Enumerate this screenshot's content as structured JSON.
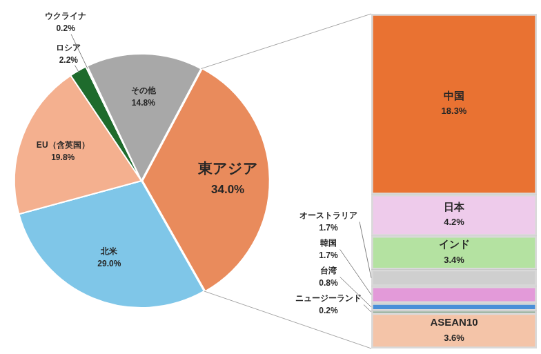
{
  "chart_data": [
    {
      "type": "pie",
      "categories": [
        "東アジア",
        "北米",
        "EU（含英国）",
        "ロシア",
        "ウクライナ",
        "その他"
      ],
      "values": [
        34.0,
        29.0,
        19.8,
        2.2,
        0.2,
        14.8
      ],
      "value_labels": [
        "34.0%",
        "29.0%",
        "19.8%",
        "2.2%",
        "0.2%",
        "14.8%"
      ],
      "colors": [
        "#e98b5c",
        "#7fc6e8",
        "#f4b08f",
        "#1e6b2c",
        "#f4f4f4",
        "#a8a8a8"
      ],
      "data_labels": true
    },
    {
      "type": "bar",
      "stacked": true,
      "data_labels": true,
      "tick_labels": false,
      "categories": [
        null
      ],
      "series": [
        {
          "name": "ASEAN10",
          "color": "#f4c4a8",
          "values": [
            3.6
          ],
          "value_labels": [
            "3.6%"
          ]
        },
        {
          "name": "ニュージーランド",
          "color": "#1f5f2a",
          "values": [
            0.2
          ],
          "value_labels": [
            "0.2%"
          ]
        },
        {
          "name": "台湾",
          "color": "#4a8fd8",
          "values": [
            0.8
          ],
          "value_labels": [
            "0.8%"
          ]
        },
        {
          "name": "韓国",
          "color": "#e39ad9",
          "values": [
            1.7
          ],
          "value_labels": [
            "1.7%"
          ]
        },
        {
          "name": "オーストラリア",
          "color": "#cfcfcf",
          "values": [
            1.7
          ],
          "value_labels": [
            "1.7%"
          ]
        },
        {
          "name": "インド",
          "color": "#b4e2a1",
          "values": [
            3.4
          ],
          "value_labels": [
            "3.4%"
          ]
        },
        {
          "name": "日本",
          "color": "#eecbeb",
          "values": [
            4.2
          ],
          "value_labels": [
            "4.2%"
          ]
        },
        {
          "name": "中国",
          "color": "#e97232",
          "values": [
            18.3
          ],
          "value_labels": [
            "18.3%"
          ]
        }
      ]
    }
  ]
}
